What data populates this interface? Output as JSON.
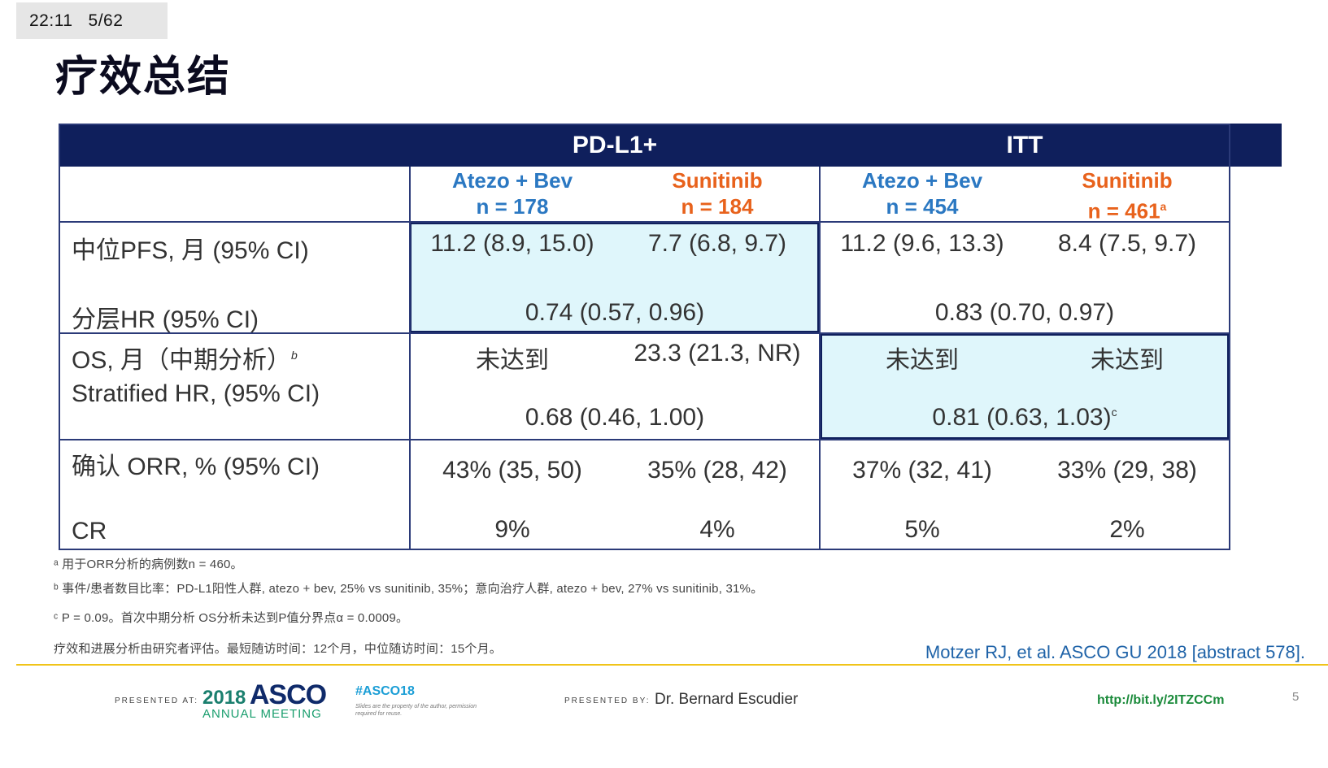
{
  "status_bar": {
    "time": "22:11",
    "page": "5/62"
  },
  "slide": {
    "title": "疗效总结",
    "table": {
      "group_headers": [
        "PD-L1+",
        "ITT"
      ],
      "arms": [
        {
          "name": "Atezo + Bev",
          "n": "n = 178"
        },
        {
          "name": "Sunitinib",
          "n": "n = 184"
        },
        {
          "name": "Atezo + Bev",
          "n": "n = 454"
        },
        {
          "name": "Sunitinib",
          "n": "n = 461",
          "n_sup": "a"
        }
      ],
      "pfs": {
        "label": "中位PFS, 月 (95% CI)",
        "hr_label": "分层HR (95% CI)",
        "values": [
          "11.2 (8.9, 15.0)",
          "7.7 (6.8, 9.7)",
          "11.2 (9.6, 13.3)",
          "8.4 (7.5, 9.7)"
        ],
        "hr": [
          "0.74 (0.57, 0.96)",
          "0.83 (0.70, 0.97)"
        ]
      },
      "os": {
        "label": "OS, 月（中期分析）",
        "label_sup": "b",
        "hr_label": "Stratified HR, (95% CI)",
        "values": [
          "未达到",
          "23.3 (21.3, NR)",
          "未达到",
          "未达到"
        ],
        "hr": [
          "0.68 (0.46, 1.00)",
          "0.81 (0.63, 1.03)"
        ],
        "hr_sup": "c"
      },
      "orr": {
        "label": "确认 ORR, % (95% CI)",
        "values": [
          "43% (35, 50)",
          "35% (28, 42)",
          "37% (32, 41)",
          "33% (29, 38)"
        ],
        "cr_label": "CR",
        "cr_values": [
          "9%",
          "4%",
          "5%",
          "2%"
        ]
      }
    },
    "footnotes": {
      "a": "ᵃ 用于ORR分析的病例数n = 460。",
      "b": "ᵇ 事件/患者数目比率：PD-L1阳性人群, atezo + bev, 25% vs sunitinib, 35%；意向治疗人群, atezo + bev, 27% vs sunitinib, 31%。",
      "c": "ᶜ P = 0.09。首次中期分析 OS分析未达到P值分界点α = 0.0009。",
      "d": "疗效和进展分析由研究者评估。最短随访时间：12个月，中位随访时间：15个月。"
    },
    "citation": "Motzer RJ, et al. ASCO GU 2018 [abstract 578].",
    "footer": {
      "presented_at": "PRESENTED AT:",
      "asco_year": "2018",
      "asco_name": "ASCO",
      "asco_sub": "ANNUAL MEETING",
      "hashtag": "#ASCO18",
      "hashtag_note": "Slides are the property of the author, permission required for reuse.",
      "presented_by": "PRESENTED BY:",
      "presenter": "Dr. Bernard Escudier",
      "url": "http://bit.ly/2ITZCCm",
      "page_number": "5"
    },
    "colors": {
      "header_bg": "#0f1f5c",
      "highlight": "#dff6fb",
      "arm_blue": "#2b78c2",
      "arm_orange": "#e8621c",
      "rule": "#f0c419"
    }
  }
}
